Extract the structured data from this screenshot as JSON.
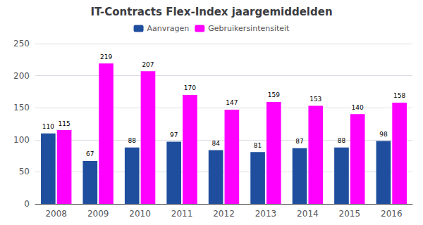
{
  "chart_data": {
    "type": "bar",
    "title": "IT-Contracts Flex-Index jaargemiddelden",
    "categories": [
      "2008",
      "2009",
      "2010",
      "2011",
      "2012",
      "2013",
      "2014",
      "2015",
      "2016"
    ],
    "series": [
      {
        "name": "Aanvragen",
        "color": "#1F4E9E",
        "values": [
          110,
          67,
          88,
          97,
          84,
          81,
          87,
          88,
          98
        ]
      },
      {
        "name": "Gebruikersintensiteit",
        "color": "#FF00FF",
        "values": [
          115,
          219,
          207,
          170,
          147,
          159,
          153,
          140,
          158
        ]
      }
    ],
    "ylim": [
      0,
      250
    ],
    "yticks": [
      0,
      50,
      100,
      150,
      200,
      250
    ],
    "grid": true,
    "legend": "top",
    "data_labels": true
  }
}
